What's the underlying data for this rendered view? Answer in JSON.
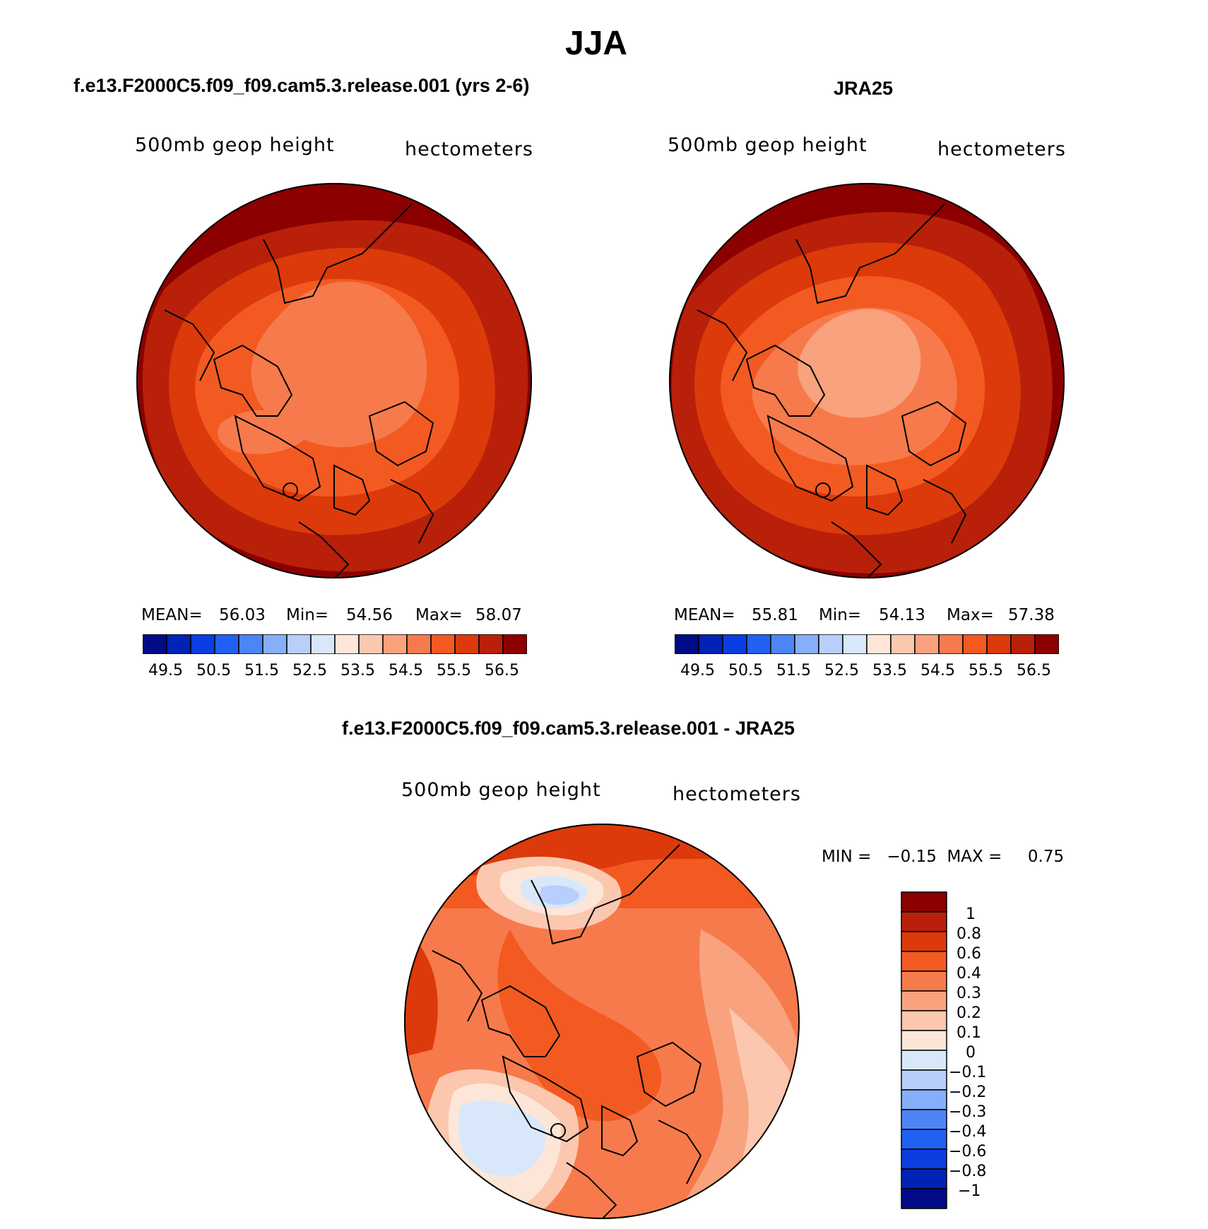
{
  "title": "JJA",
  "panels": [
    {
      "id": "model",
      "title": "f.e13.F2000C5.f09_f09.cam5.3.release.001 (yrs 2-6)",
      "field_label": "500mb  geop  height",
      "units_label": "hectometers",
      "stats": {
        "mean_label": "MEAN=",
        "mean": "56.03",
        "min_label": "Min=",
        "min": "54.56",
        "max_label": "Max=",
        "max": "58.07"
      }
    },
    {
      "id": "obs",
      "title": "JRA25",
      "field_label": "500mb  geop  height",
      "units_label": "hectometers",
      "stats": {
        "mean_label": "MEAN=",
        "mean": "55.81",
        "min_label": "Min=",
        "min": "54.13",
        "max_label": "Max=",
        "max": "57.38"
      }
    }
  ],
  "abs_colorbar": {
    "colors": [
      "#000b85",
      "#0022b5",
      "#0a3ee0",
      "#2161f2",
      "#4c85f5",
      "#86aefa",
      "#b7cffa",
      "#d8e8fa",
      "#fde6d8",
      "#fcc7af",
      "#f9a27e",
      "#f77a4c",
      "#f25a22",
      "#dc3a0a",
      "#b8200a",
      "#8c0000"
    ],
    "tick_labels": [
      "49.5",
      "50.5",
      "51.5",
      "52.5",
      "53.5",
      "54.5",
      "55.5",
      "56.5"
    ]
  },
  "diff_panel": {
    "title": "f.e13.F2000C5.f09_f09.cam5.3.release.001 - JRA25",
    "field_label": "500mb  geop  height",
    "units_label": "hectometers",
    "minmax": "MIN =   −0.15  MAX =     0.75"
  },
  "diff_colorbar": {
    "colors_top_to_bottom": [
      "#8c0000",
      "#b8200a",
      "#dc3a0a",
      "#f25a22",
      "#f77a4c",
      "#f9a27e",
      "#fcc7af",
      "#fde6d8",
      "#d8e8fa",
      "#b7cffa",
      "#86aefa",
      "#4c85f5",
      "#2161f2",
      "#0a3ee0",
      "#0022b5",
      "#000b85"
    ],
    "tick_labels": [
      "1",
      "0.8",
      "0.6",
      "0.4",
      "0.3",
      "0.2",
      "0.1",
      "0",
      "−0.1",
      "−0.2",
      "−0.3",
      "−0.4",
      "−0.6",
      "−0.8",
      "−1"
    ]
  }
}
